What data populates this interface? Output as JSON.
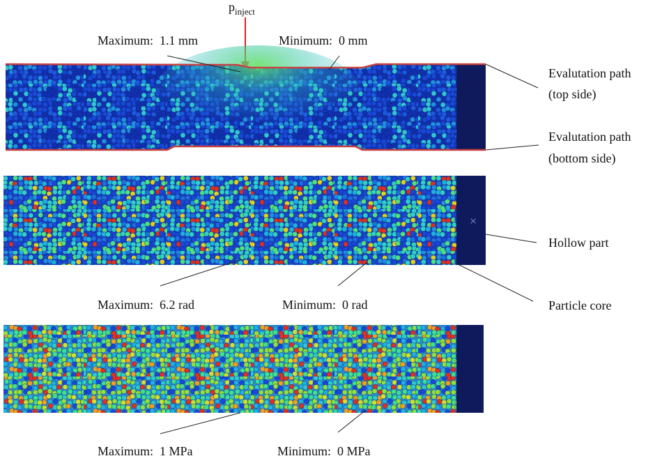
{
  "annotations": {
    "p_inject": {
      "main": "p",
      "subscript": "inject"
    }
  },
  "panels": [
    {
      "maximum": "Maximum:  1.1 mm",
      "minimum": "Minimum:  0 mm"
    },
    {
      "maximum": "Maximum:  6.2 rad",
      "minimum": "Minimum:  0 rad"
    },
    {
      "maximum": "Maximum:  1 MPa",
      "minimum": "Minimum:  0 MPa"
    }
  ],
  "callouts": {
    "evaluation_top": [
      "Evalutation path",
      "(top side)"
    ],
    "evaluation_bottom": [
      "Evalutation path",
      "(bottom side)"
    ],
    "hollow_part": "Hollow part",
    "particle_core": "Particle core"
  }
}
